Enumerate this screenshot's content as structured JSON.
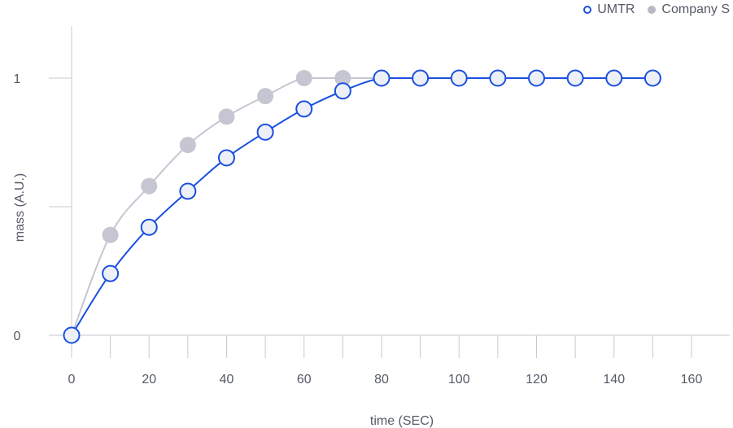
{
  "chart_data": {
    "type": "line",
    "xlabel": "time (SEC)",
    "ylabel": "mass (A.U.)",
    "xlim": [
      0,
      160
    ],
    "ylim": [
      0,
      1
    ],
    "x_ticks": [
      0,
      20,
      40,
      60,
      80,
      100,
      120,
      140,
      160
    ],
    "y_ticks": [
      0,
      1
    ],
    "legend_position": "top-right",
    "series": [
      {
        "name": "UMTR",
        "color": "#1a4fe0",
        "marker": "hollow-circle",
        "x": [
          0,
          10,
          20,
          30,
          40,
          50,
          60,
          70,
          80,
          90,
          100,
          110,
          120,
          130,
          140,
          150
        ],
        "values": [
          0,
          0.24,
          0.42,
          0.56,
          0.69,
          0.79,
          0.88,
          0.95,
          1,
          1,
          1,
          1,
          1,
          1,
          1,
          1
        ]
      },
      {
        "name": "Company S",
        "color": "#c6c6d2",
        "marker": "filled-circle",
        "x": [
          0,
          10,
          20,
          30,
          40,
          50,
          60,
          70,
          80,
          90,
          100,
          110,
          120,
          130,
          140,
          150
        ],
        "values": [
          0,
          0.39,
          0.58,
          0.74,
          0.85,
          0.93,
          1,
          1,
          1,
          1,
          1,
          1,
          1,
          1,
          1,
          1
        ]
      }
    ]
  }
}
